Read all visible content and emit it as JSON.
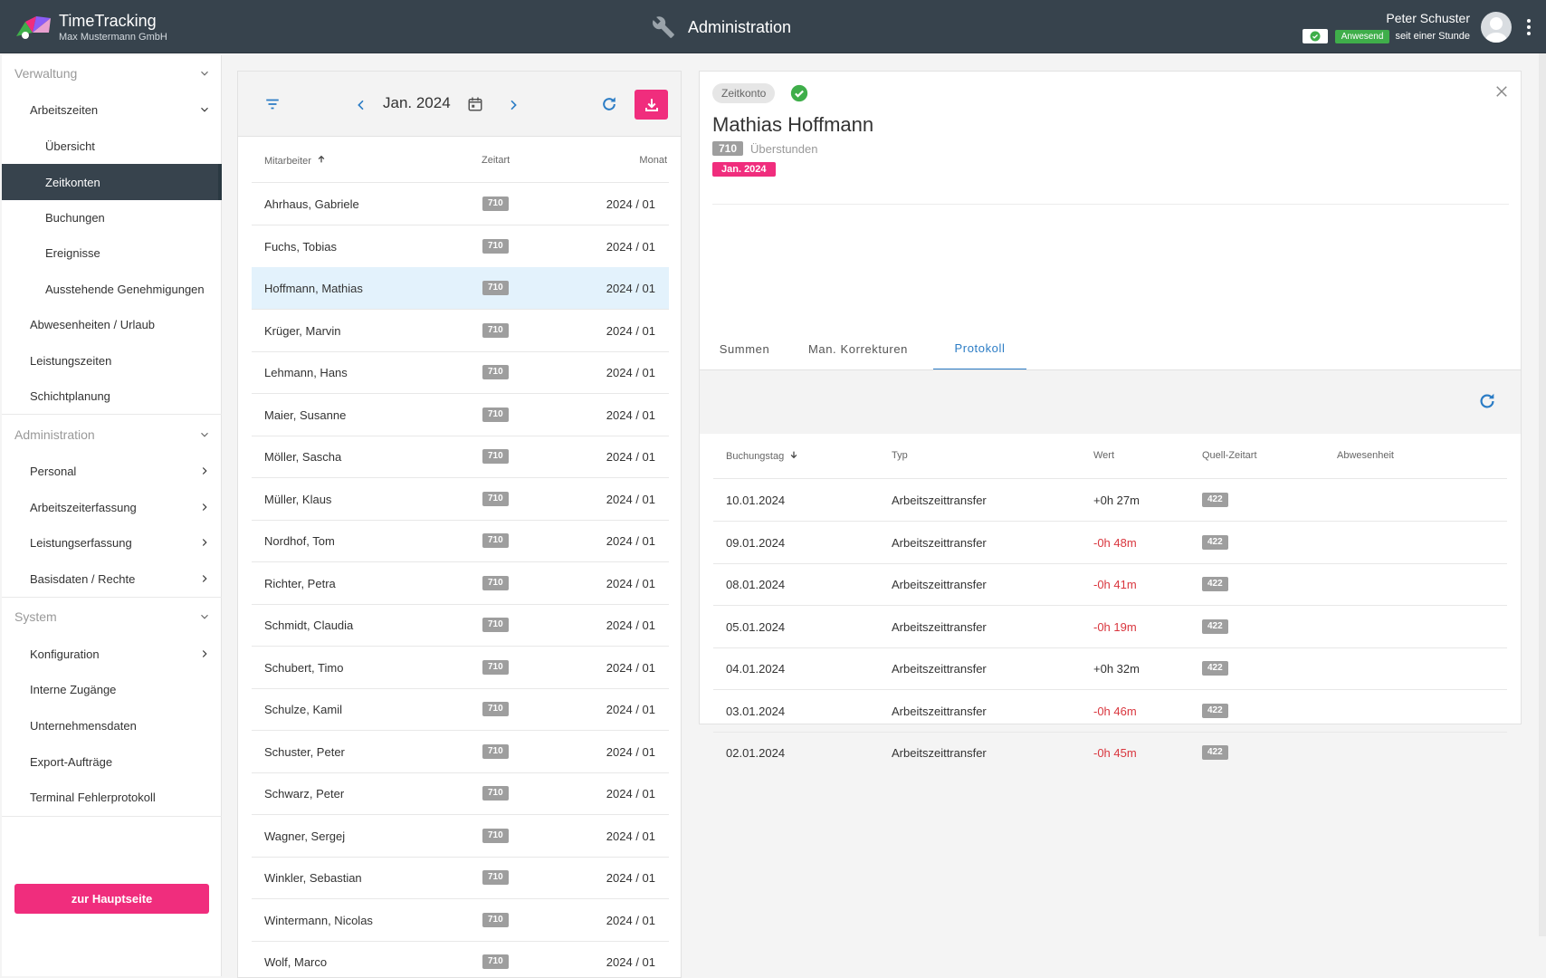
{
  "header": {
    "app_title": "TimeTracking",
    "company": "Max Mustermann GmbH",
    "section_title": "Administration",
    "user_name": "Peter Schuster",
    "status_label": "Anwesend",
    "status_since": "seit einer Stunde"
  },
  "sidebar": {
    "sections": [
      {
        "label": "Verwaltung"
      },
      {
        "label": "Administration"
      },
      {
        "label": "System"
      }
    ],
    "items": [
      {
        "label": "Arbeitszeiten"
      },
      {
        "label": "Übersicht"
      },
      {
        "label": "Zeitkonten"
      },
      {
        "label": "Buchungen"
      },
      {
        "label": "Ereignisse"
      },
      {
        "label": "Ausstehende Genehmigungen"
      },
      {
        "label": "Abwesenheiten / Urlaub"
      },
      {
        "label": "Leistungszeiten"
      },
      {
        "label": "Schichtplanung"
      },
      {
        "label": "Personal"
      },
      {
        "label": "Arbeitszeiterfassung"
      },
      {
        "label": "Leistungserfassung"
      },
      {
        "label": "Basisdaten / Rechte"
      },
      {
        "label": "Konfiguration"
      },
      {
        "label": "Interne Zugänge"
      },
      {
        "label": "Unternehmensdaten"
      },
      {
        "label": "Export-Aufträge"
      },
      {
        "label": "Terminal Fehlerprotokoll"
      }
    ],
    "home_button": "zur Hauptseite"
  },
  "list": {
    "month": "Jan. 2024",
    "columns": {
      "employee": "Mitarbeiter",
      "type": "Zeitart",
      "month": "Monat"
    },
    "rows": [
      {
        "name": "Ahrhaus, Gabriele",
        "code": "710",
        "month": "2024 / 01"
      },
      {
        "name": "Fuchs, Tobias",
        "code": "710",
        "month": "2024 / 01"
      },
      {
        "name": "Hoffmann, Mathias",
        "code": "710",
        "month": "2024 / 01"
      },
      {
        "name": "Krüger, Marvin",
        "code": "710",
        "month": "2024 / 01"
      },
      {
        "name": "Lehmann, Hans",
        "code": "710",
        "month": "2024 / 01"
      },
      {
        "name": "Maier, Susanne",
        "code": "710",
        "month": "2024 / 01"
      },
      {
        "name": "Möller, Sascha",
        "code": "710",
        "month": "2024 / 01"
      },
      {
        "name": "Müller, Klaus",
        "code": "710",
        "month": "2024 / 01"
      },
      {
        "name": "Nordhof, Tom",
        "code": "710",
        "month": "2024 / 01"
      },
      {
        "name": "Richter, Petra",
        "code": "710",
        "month": "2024 / 01"
      },
      {
        "name": "Schmidt, Claudia",
        "code": "710",
        "month": "2024 / 01"
      },
      {
        "name": "Schubert, Timo",
        "code": "710",
        "month": "2024 / 01"
      },
      {
        "name": "Schulze, Kamil",
        "code": "710",
        "month": "2024 / 01"
      },
      {
        "name": "Schuster, Peter",
        "code": "710",
        "month": "2024 / 01"
      },
      {
        "name": "Schwarz, Peter",
        "code": "710",
        "month": "2024 / 01"
      },
      {
        "name": "Wagner, Sergej",
        "code": "710",
        "month": "2024 / 01"
      },
      {
        "name": "Winkler, Sebastian",
        "code": "710",
        "month": "2024 / 01"
      },
      {
        "name": "Wintermann, Nicolas",
        "code": "710",
        "month": "2024 / 01"
      },
      {
        "name": "Wolf, Marco",
        "code": "710",
        "month": "2024 / 01"
      }
    ]
  },
  "detail": {
    "chip": "Zeitkonto",
    "name": "Mathias Hoffmann",
    "code": "710",
    "code_label": "Überstunden",
    "month_badge": "Jan. 2024",
    "tabs": [
      {
        "label": "Summen"
      },
      {
        "label": "Man. Korrekturen"
      },
      {
        "label": "Protokoll"
      }
    ],
    "columns": {
      "date": "Buchungstag",
      "type": "Typ",
      "value": "Wert",
      "source": "Quell-Zeitart",
      "absence": "Abwesenheit"
    },
    "rows": [
      {
        "date": "10.01.2024",
        "type": "Arbeitszeittransfer",
        "value": "+0h 27m",
        "source": "422"
      },
      {
        "date": "09.01.2024",
        "type": "Arbeitszeittransfer",
        "value": "-0h 48m",
        "source": "422"
      },
      {
        "date": "08.01.2024",
        "type": "Arbeitszeittransfer",
        "value": "-0h 41m",
        "source": "422"
      },
      {
        "date": "05.01.2024",
        "type": "Arbeitszeittransfer",
        "value": "-0h 19m",
        "source": "422"
      },
      {
        "date": "04.01.2024",
        "type": "Arbeitszeittransfer",
        "value": "+0h 32m",
        "source": "422"
      },
      {
        "date": "03.01.2024",
        "type": "Arbeitszeittransfer",
        "value": "-0h 46m",
        "source": "422"
      },
      {
        "date": "02.01.2024",
        "type": "Arbeitszeittransfer",
        "value": "-0h 45m",
        "source": "422"
      }
    ]
  },
  "colors": {
    "header_bg": "#37434d",
    "accent_pink": "#f02d7d",
    "accent_blue": "#2b7cc5",
    "status_green": "#3fae4a",
    "negative_red": "#d9363e",
    "selected_row": "#e3f2fc"
  }
}
